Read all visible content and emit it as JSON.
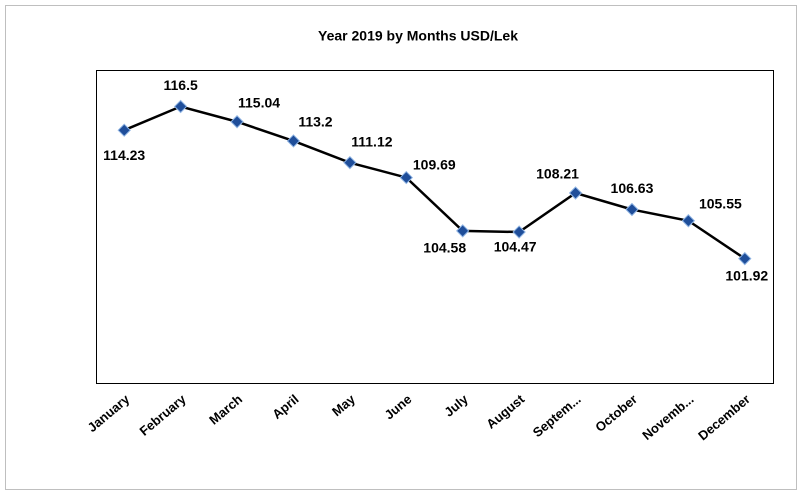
{
  "chart_data": {
    "type": "line",
    "title": "Year 2019  by Months USD/Lek",
    "categories": [
      "January",
      "February",
      "March",
      "April",
      "May",
      "June",
      "July",
      "August",
      "Septem...",
      "October",
      "Novemb...",
      "December"
    ],
    "values": [
      114.23,
      116.5,
      115.04,
      113.2,
      111.12,
      109.69,
      104.58,
      104.47,
      108.21,
      106.63,
      105.55,
      101.92
    ],
    "color": "#000000",
    "marker_color": "#1f4e9a",
    "ylim": [
      90,
      120
    ]
  }
}
